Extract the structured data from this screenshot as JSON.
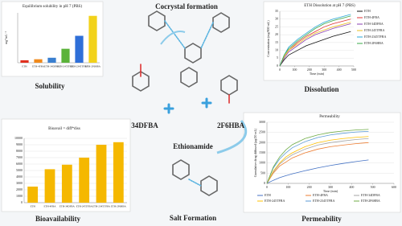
{
  "labels": {
    "cocrystal": "Cocrystal formation",
    "solubility": "Solubility",
    "dissolution": "Dissolution",
    "bioavailability": "Bioavailability",
    "permeability": "Permeability",
    "dfba": "34DFBA",
    "eth": "Ethionamide",
    "hba": "2F6HBA",
    "salt": "Salt Formation"
  },
  "chart_data": [
    {
      "type": "bar",
      "title": "Equilibrium solubility in pH 7 (PBS)",
      "ylabel": "mg*mL⁻¹",
      "categories": [
        "ETH",
        "ETH-4FBA",
        "ETH-34DFBA",
        "ETH-245TFBA",
        "ETH-2345TFBA",
        "ETH-2F6HBA"
      ],
      "values": [
        0.25,
        0.35,
        0.5,
        1.4,
        2.7,
        4.7
      ],
      "colors": [
        "#e0301e",
        "#f08a1c",
        "#3a7fd0",
        "#5bb33a",
        "#2f6fd8",
        "#f2d21a"
      ],
      "ylim": [
        0,
        5
      ],
      "grid": false
    },
    {
      "type": "line",
      "title": "ETH Dissolution at pH 7 (PBS)",
      "xlabel": "Time (min)",
      "ylabel": "Concentration (mg/800 mL)",
      "x": [
        0,
        30,
        60,
        120,
        180,
        240,
        300,
        360,
        480
      ],
      "xlim": [
        0,
        500
      ],
      "ylim": [
        0,
        35
      ],
      "xticks": [
        0,
        100,
        200,
        300,
        400,
        500
      ],
      "yticks": [
        0,
        5,
        10,
        15,
        20,
        25,
        30,
        35
      ],
      "grid": true,
      "series": [
        {
          "name": "ETH",
          "color": "#111111",
          "values": [
            0,
            4,
            7,
            10,
            13,
            15,
            17,
            19,
            22
          ]
        },
        {
          "name": "ETH-4FBA",
          "color": "#e03030",
          "values": [
            0,
            6,
            10,
            15,
            19,
            22,
            25,
            27,
            30
          ]
        },
        {
          "name": "ETH-34DFBA",
          "color": "#8a3fb0",
          "values": [
            0,
            5,
            9,
            13,
            17,
            20,
            22,
            24,
            27
          ]
        },
        {
          "name": "ETH-245TFBA",
          "color": "#e8c020",
          "values": [
            0,
            6,
            10,
            14,
            18,
            21,
            23,
            25,
            28
          ]
        },
        {
          "name": "ETH-2345TFBA",
          "color": "#29a8d8",
          "values": [
            0,
            7,
            12,
            17,
            21,
            25,
            28,
            30,
            33
          ]
        },
        {
          "name": "ETH-2F6HBA",
          "color": "#3aa84a",
          "values": [
            0,
            7,
            11,
            16,
            20,
            24,
            27,
            29,
            32
          ]
        }
      ]
    },
    {
      "type": "bar",
      "title": "Bioavail = diff*diss",
      "categories": [
        "ETH",
        "ETH-4FBA",
        "ETH-34DFBA",
        "ETH-245TFBA",
        "ETH-2345TFBA",
        "ETH-2F6HBA"
      ],
      "values": [
        2500,
        5200,
        5900,
        7000,
        9000,
        9400
      ],
      "color": "#f5b800",
      "ylim": [
        0,
        10000
      ],
      "yticks": [
        0,
        1000,
        2000,
        3000,
        4000,
        5000,
        6000,
        7000,
        8000,
        9000,
        10000
      ],
      "grid": true
    },
    {
      "type": "line",
      "title": "Permeability",
      "xlabel": "Time (min)",
      "ylabel": "Cumulative drug diffused (μg/20 mL)",
      "x": [
        0,
        30,
        60,
        90,
        120,
        180,
        240,
        300,
        360,
        420,
        480
      ],
      "xlim": [
        0,
        600
      ],
      "ylim": [
        0,
        3000
      ],
      "xticks": [
        0,
        100,
        200,
        300,
        400,
        500,
        600
      ],
      "yticks": [
        0,
        500,
        1000,
        1500,
        2000,
        2500,
        3000
      ],
      "grid": true,
      "series": [
        {
          "name": "ETH",
          "color": "#4472c4",
          "values": [
            0,
            150,
            280,
            380,
            470,
            620,
            760,
            880,
            980,
            1070,
            1150
          ]
        },
        {
          "name": "ETH-4FBA",
          "color": "#ed7d31",
          "values": [
            0,
            500,
            850,
            1050,
            1250,
            1500,
            1680,
            1800,
            1880,
            1950,
            2000
          ]
        },
        {
          "name": "ETH-34DFBA",
          "color": "#a5a5a5",
          "values": [
            0,
            550,
            950,
            1200,
            1400,
            1680,
            1880,
            2000,
            2080,
            2150,
            2200
          ]
        },
        {
          "name": "ETH-245TFBA",
          "color": "#ffc000",
          "values": [
            0,
            600,
            1000,
            1300,
            1500,
            1800,
            2000,
            2120,
            2200,
            2260,
            2300
          ]
        },
        {
          "name": "ETH-2345TFBA",
          "color": "#5b9bd5",
          "values": [
            0,
            750,
            1200,
            1500,
            1750,
            2050,
            2250,
            2380,
            2460,
            2520,
            2550
          ]
        },
        {
          "name": "ETH-2F6HBA",
          "color": "#70ad47",
          "values": [
            0,
            800,
            1300,
            1650,
            1900,
            2200,
            2380,
            2500,
            2570,
            2620,
            2650
          ]
        }
      ]
    }
  ]
}
